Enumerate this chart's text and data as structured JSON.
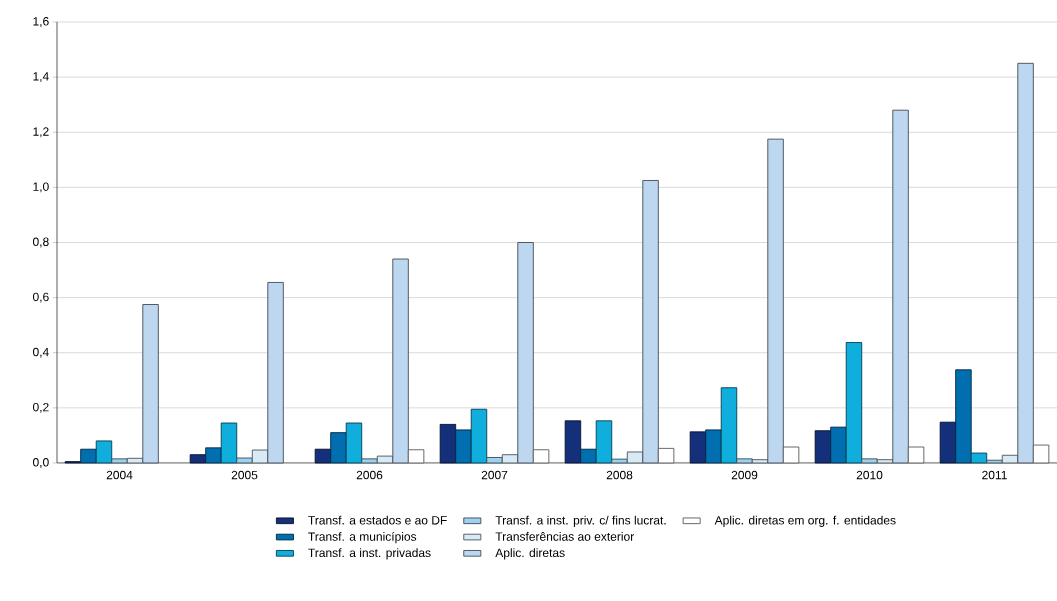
{
  "chart_data": {
    "type": "bar",
    "categories": [
      "2004",
      "2005",
      "2006",
      "2007",
      "2008",
      "2009",
      "2010",
      "2011"
    ],
    "series": [
      {
        "name": "Transf. a estados e ao DF",
        "color": "#14307a",
        "values": [
          0.005,
          0.03,
          0.05,
          0.14,
          0.153,
          0.113,
          0.117,
          0.148
        ]
      },
      {
        "name": "Transf. a municípios",
        "color": "#006eaf",
        "values": [
          0.05,
          0.055,
          0.11,
          0.12,
          0.05,
          0.12,
          0.13,
          0.338
        ]
      },
      {
        "name": "Transf. a inst. privadas",
        "color": "#10aedc",
        "values": [
          0.08,
          0.145,
          0.145,
          0.195,
          0.153,
          0.273,
          0.437,
          0.036
        ]
      },
      {
        "name": "Transf. a inst. priv. c/  fins lucrat.",
        "color": "#9fd0ef",
        "values": [
          0.015,
          0.018,
          0.015,
          0.02,
          0.014,
          0.015,
          0.015,
          0.01
        ]
      },
      {
        "name": "Transferências ao exterior",
        "color": "#d9eaf7",
        "values": [
          0.017,
          0.047,
          0.025,
          0.03,
          0.04,
          0.012,
          0.012,
          0.028
        ]
      },
      {
        "name": "Aplic. diretas",
        "color": "#bdd7f0",
        "values": [
          0.575,
          0.655,
          0.74,
          0.8,
          1.025,
          1.175,
          1.28,
          1.45
        ]
      },
      {
        "name": "Aplic. diretas em org. f. entidades",
        "color": "#ffffff",
        "values": [
          null,
          null,
          0.048,
          0.048,
          0.053,
          0.058,
          0.058,
          0.065
        ]
      }
    ],
    "ylim": [
      0,
      1.6
    ],
    "yticks": [
      {
        "value": 0,
        "label": "0,0"
      },
      {
        "value": 0.2,
        "label": "0,2"
      },
      {
        "value": 0.4,
        "label": "0,4"
      },
      {
        "value": 0.6,
        "label": "0,6"
      },
      {
        "value": 0.8,
        "label": "0,8"
      },
      {
        "value": 1.0,
        "label": "1,0"
      },
      {
        "value": 1.2,
        "label": "1,2"
      },
      {
        "value": 1.4,
        "label": "1,4"
      },
      {
        "value": 1.6,
        "label": "1,6"
      }
    ],
    "grid": "y",
    "legend": "bottom"
  }
}
